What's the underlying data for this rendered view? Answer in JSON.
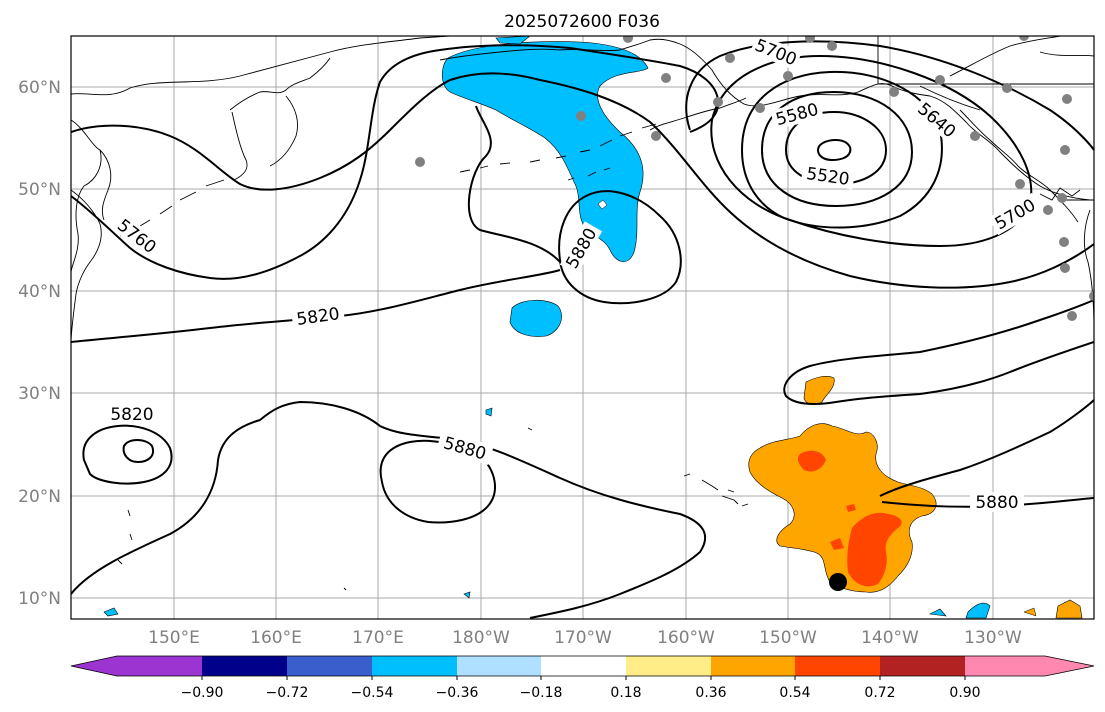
{
  "title": "2025072600 F036",
  "axes": {
    "lon_labels": [
      "150°E",
      "160°E",
      "170°E",
      "180°W",
      "170°W",
      "160°W",
      "150°W",
      "140°W",
      "130°W"
    ],
    "lat_labels": [
      "60°N",
      "50°N",
      "40°N",
      "30°N",
      "20°N",
      "10°N"
    ]
  },
  "contour_labels": [
    "5700",
    "5580",
    "5640",
    "5520",
    "5700",
    "5760",
    "5880",
    "5820",
    "5820",
    "5880",
    "5880"
  ],
  "colorbar": {
    "tick_labels": [
      "−0.90",
      "−0.72",
      "−0.54",
      "−0.36",
      "−0.18",
      "0.18",
      "0.36",
      "0.54",
      "0.72",
      "0.90"
    ],
    "colors": [
      "#9b34d1",
      "#00008b",
      "#3a5fcd",
      "#00bfff",
      "#b0e0ff",
      "#ffffff",
      "#ffee88",
      "#ffa500",
      "#ff4500",
      "#b22222",
      "#ff88b0"
    ]
  },
  "colors": {
    "negative_anomaly": "#00bfff",
    "positive_anomaly": "#ffa500",
    "strong_positive": "#ff4500",
    "station_dot": "#808080",
    "storm_marker": "#000000"
  }
}
